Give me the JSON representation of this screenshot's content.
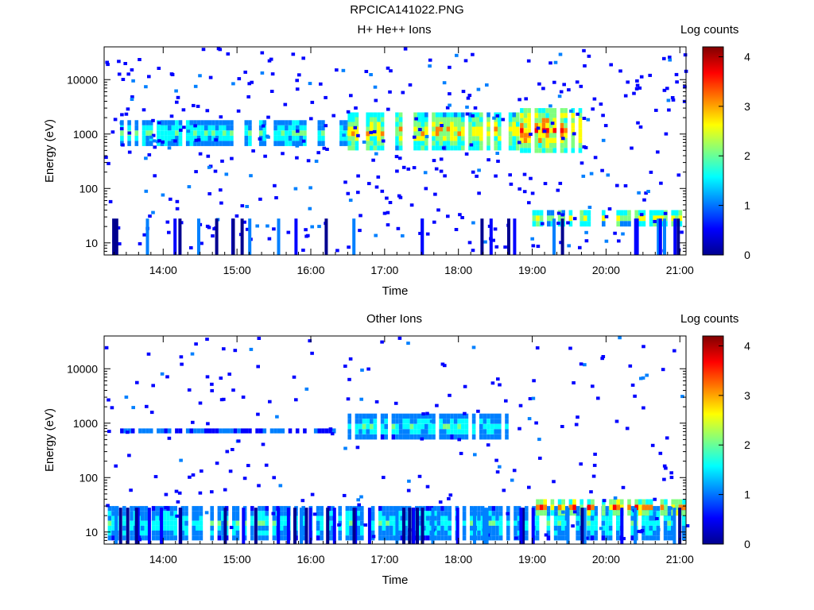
{
  "figure_title": "RPCICA141022.PNG",
  "colors": {
    "background": "#ffffff",
    "axis": "#000000"
  },
  "colorscale": [
    "#00008f",
    "#0000ff",
    "#0080ff",
    "#00ffff",
    "#80ff80",
    "#ffff00",
    "#ff8000",
    "#ff0000",
    "#800000"
  ],
  "chart_data": [
    {
      "type": "heatmap",
      "title": "H+ He++ Ions",
      "xlabel": "Time",
      "ylabel": "Energy (eV)",
      "y_scale": "log",
      "ylim": [
        6,
        40000
      ],
      "xlim": [
        "13:12",
        "21:05"
      ],
      "x_ticks": [
        "14:00",
        "15:00",
        "16:00",
        "17:00",
        "18:00",
        "19:00",
        "20:00",
        "21:00"
      ],
      "y_ticks": [
        "10",
        "100",
        "1000",
        "10000"
      ],
      "colorbar": {
        "label": "Log counts",
        "range": [
          0,
          4.2
        ],
        "ticks": [
          "0",
          "1",
          "2",
          "3",
          "4"
        ]
      },
      "bands": [
        {
          "energy_range": [
            600,
            1800
          ],
          "start": "13:25",
          "end": "16:30",
          "peak_log_counts": 2.2
        },
        {
          "energy_range": [
            500,
            2500
          ],
          "start": "16:30",
          "end": "18:50",
          "peak_log_counts": 3.3
        },
        {
          "energy_range": [
            450,
            3000
          ],
          "start": "18:50",
          "end": "19:40",
          "peak_log_counts": 3.8
        },
        {
          "energy_range": [
            20,
            40
          ],
          "start": "19:00",
          "end": "21:05",
          "peak_log_counts": 2.9
        }
      ]
    },
    {
      "type": "heatmap",
      "title": "Other Ions",
      "xlabel": "Time",
      "ylabel": "Energy (eV)",
      "y_scale": "log",
      "ylim": [
        6,
        40000
      ],
      "xlim": [
        "13:12",
        "21:05"
      ],
      "x_ticks": [
        "14:00",
        "15:00",
        "16:00",
        "17:00",
        "18:00",
        "19:00",
        "20:00",
        "21:00"
      ],
      "y_ticks": [
        "10",
        "100",
        "1000",
        "10000"
      ],
      "colorbar": {
        "label": "Log counts",
        "range": [
          0,
          4.2
        ],
        "ticks": [
          "0",
          "1",
          "2",
          "3",
          "4"
        ]
      },
      "bands": [
        {
          "energy_range": [
            650,
            800
          ],
          "start": "13:25",
          "end": "16:20",
          "peak_log_counts": 1.0
        },
        {
          "energy_range": [
            500,
            1500
          ],
          "start": "16:30",
          "end": "18:40",
          "peak_log_counts": 2.0
        },
        {
          "energy_range": [
            7,
            30
          ],
          "start": "13:15",
          "end": "21:05",
          "peak_log_counts": 2.0
        },
        {
          "energy_range": [
            20,
            40
          ],
          "start": "19:00",
          "end": "21:05",
          "peak_log_counts": 3.6
        }
      ]
    }
  ]
}
